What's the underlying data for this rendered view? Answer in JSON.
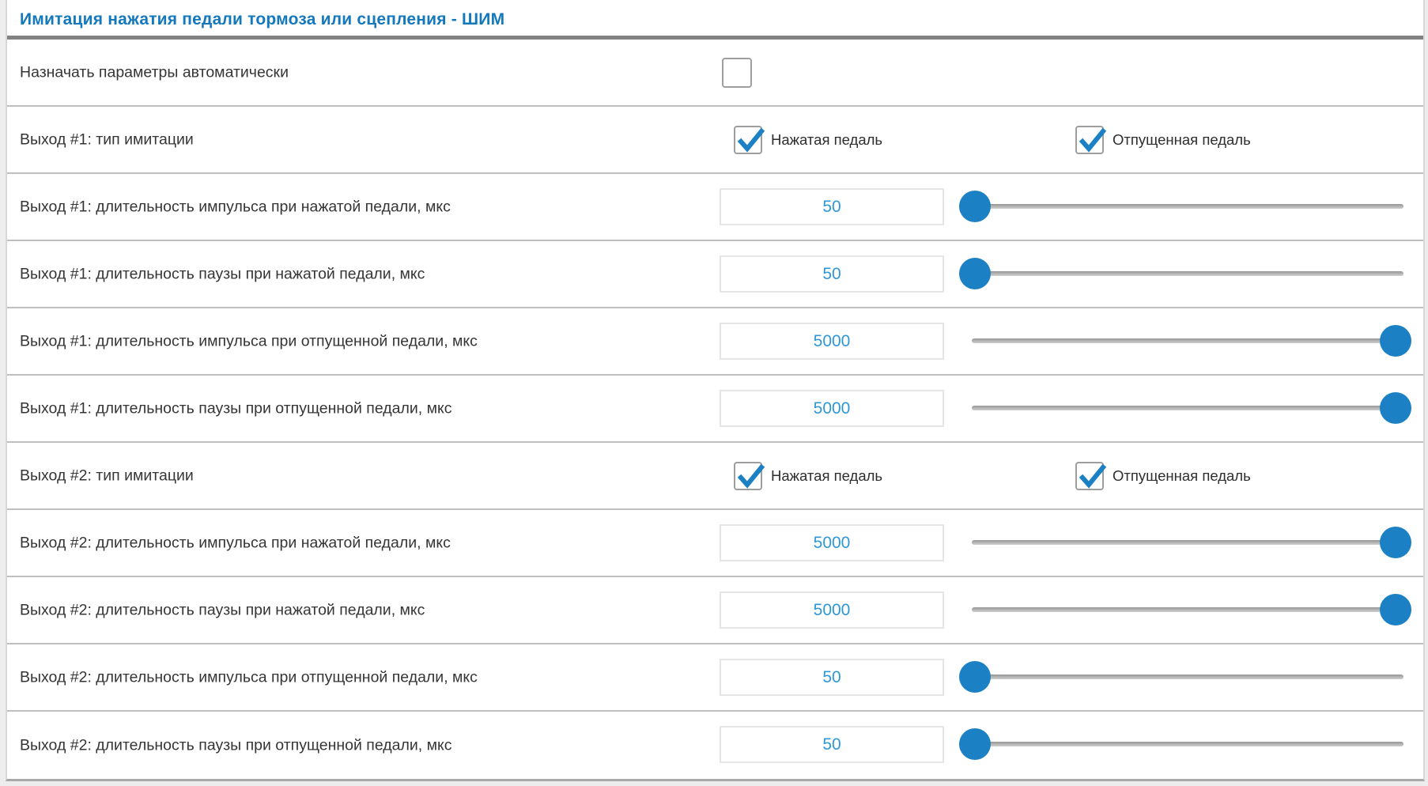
{
  "panel": {
    "title": "Имитация нажатия педали тормоза или сцепления - ШИМ",
    "unit_note": "мкс"
  },
  "colors": {
    "accent": "#1b80c4",
    "title": "#1478bd",
    "value_text": "#2e97d8",
    "label_text": "#353535"
  },
  "icons": {
    "checkmark": "checkmark-icon"
  },
  "rows": [
    {
      "type": "auto-checkbox",
      "name": "auto-params",
      "label": "Назначать параметры автоматически",
      "checked": false
    },
    {
      "type": "check-pair",
      "name": "out1-imitation-type",
      "label": "Выход #1: тип имитации",
      "options": [
        {
          "name": "pressed-pedal",
          "label": "Нажатая педаль",
          "checked": true
        },
        {
          "name": "released-pedal",
          "label": "Отпущенная педаль",
          "checked": true
        }
      ]
    },
    {
      "type": "slider",
      "name": "out1-pulse-pressed",
      "label": "Выход #1: длительность импульса при нажатой педали, мкс",
      "value": "50",
      "thumb": "min"
    },
    {
      "type": "slider",
      "name": "out1-pause-pressed",
      "label": "Выход #1: длительность паузы при нажатой педали, мкс",
      "value": "50",
      "thumb": "min"
    },
    {
      "type": "slider",
      "name": "out1-pulse-released",
      "label": "Выход #1: длительность импульса при отпущенной педали, мкс",
      "value": "5000",
      "thumb": "max"
    },
    {
      "type": "slider",
      "name": "out1-pause-released",
      "label": "Выход #1: длительность паузы при отпущенной педали, мкс",
      "value": "5000",
      "thumb": "max"
    },
    {
      "type": "check-pair",
      "name": "out2-imitation-type",
      "label": "Выход #2: тип имитации",
      "options": [
        {
          "name": "pressed-pedal",
          "label": "Нажатая педаль",
          "checked": true
        },
        {
          "name": "released-pedal",
          "label": "Отпущенная педаль",
          "checked": true
        }
      ]
    },
    {
      "type": "slider",
      "name": "out2-pulse-pressed",
      "label": "Выход #2: длительность импульса при нажатой педали, мкс",
      "value": "5000",
      "thumb": "max"
    },
    {
      "type": "slider",
      "name": "out2-pause-pressed",
      "label": "Выход #2: длительность паузы при нажатой педали, мкс",
      "value": "5000",
      "thumb": "max"
    },
    {
      "type": "slider",
      "name": "out2-pulse-released",
      "label": "Выход #2: длительность импульса при отпущенной педали, мкс",
      "value": "50",
      "thumb": "min"
    },
    {
      "type": "slider",
      "name": "out2-pause-released",
      "label": "Выход #2: длительность паузы при отпущенной педали, мкс",
      "value": "50",
      "thumb": "min"
    }
  ]
}
